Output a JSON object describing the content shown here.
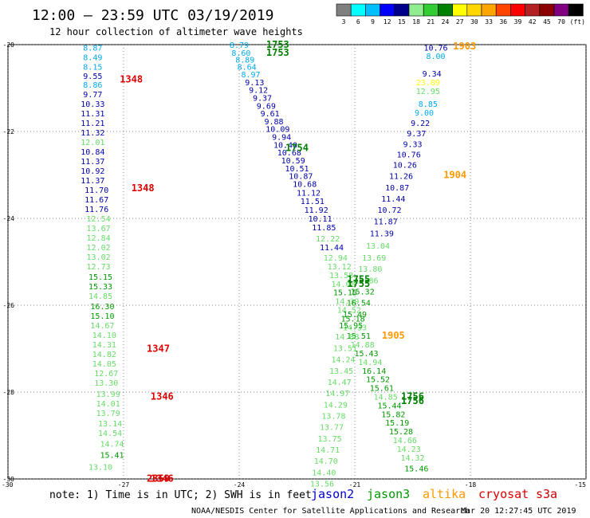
{
  "header": {
    "title": "12:00 – 23:59 UTC 03/19/2019",
    "subtitle": "12 hour collection of altimeter wave heights"
  },
  "colorbar": {
    "labels": [
      "3",
      "6",
      "9",
      "12",
      "15",
      "18",
      "21",
      "24",
      "27",
      "30",
      "33",
      "36",
      "39",
      "42",
      "45",
      "70",
      "(ft)"
    ],
    "colors": [
      "#7f7f7f",
      "#00ffff",
      "#00bfff",
      "#0000ff",
      "#00008b",
      "#90ee90",
      "#32cd32",
      "#008000",
      "#ffff00",
      "#ffd700",
      "#ffa500",
      "#ff4500",
      "#ff0000",
      "#b22222",
      "#8b0000",
      "#800080",
      "#000000"
    ]
  },
  "footer": {
    "note": "note:  1) Time is in UTC; 2) SWH is in feet",
    "credit": "NOAA/NESDIS Center for Satellite Applications and Research",
    "timestamp": "Mar 20 12:27:45 UTC 2019"
  },
  "legend": [
    {
      "name": "jason2",
      "color": "#0000cc"
    },
    {
      "name": "jason3",
      "color": "#009900"
    },
    {
      "name": "altika",
      "color": "#ff9900"
    },
    {
      "name": "cryosat",
      "color": "#dd0000"
    },
    {
      "name": "s3a",
      "color": "#cc0000"
    }
  ],
  "chart_data": {
    "type": "scatter",
    "xlim": [
      -30,
      -15
    ],
    "ylim": [
      -30,
      -20
    ],
    "xticks": [
      "-30",
      "-27",
      "-24",
      "-21",
      "-18",
      "-15"
    ],
    "yticks": [
      "-20",
      "-22",
      "-24",
      "-26",
      "-28",
      "-30"
    ],
    "grid": true,
    "points": [
      {
        "x": -27.8,
        "y": -20.06,
        "v": "8.87",
        "c": "#00aaee"
      },
      {
        "x": -27.8,
        "y": -20.28,
        "v": "8.49",
        "c": "#00aaee"
      },
      {
        "x": -27.8,
        "y": -20.5,
        "v": "8.15",
        "c": "#00aaee"
      },
      {
        "x": -27.8,
        "y": -20.72,
        "v": "9.55",
        "c": "#0000aa"
      },
      {
        "x": -27.8,
        "y": -20.92,
        "v": "8.86",
        "c": "#00aaee"
      },
      {
        "x": -27.8,
        "y": -21.14,
        "v": "9.77",
        "c": "#0000aa"
      },
      {
        "x": -27.8,
        "y": -21.36,
        "v": "10.33",
        "c": "#0000aa"
      },
      {
        "x": -27.8,
        "y": -21.58,
        "v": "11.31",
        "c": "#0000aa"
      },
      {
        "x": -27.8,
        "y": -21.8,
        "v": "11.21",
        "c": "#0000aa"
      },
      {
        "x": -27.8,
        "y": -22.02,
        "v": "11.32",
        "c": "#0000aa"
      },
      {
        "x": -27.8,
        "y": -22.24,
        "v": "12.01",
        "c": "#66dd66"
      },
      {
        "x": -27.8,
        "y": -22.46,
        "v": "10.84",
        "c": "#0000aa"
      },
      {
        "x": -27.8,
        "y": -22.68,
        "v": "11.37",
        "c": "#0000aa"
      },
      {
        "x": -27.8,
        "y": -22.9,
        "v": "10.92",
        "c": "#0000aa"
      },
      {
        "x": -27.8,
        "y": -23.12,
        "v": "11.37",
        "c": "#0000aa"
      },
      {
        "x": -27.7,
        "y": -23.34,
        "v": "11.70",
        "c": "#0000aa"
      },
      {
        "x": -27.7,
        "y": -23.56,
        "v": "11.67",
        "c": "#0000aa"
      },
      {
        "x": -27.7,
        "y": -23.78,
        "v": "11.76",
        "c": "#0000aa"
      },
      {
        "x": -27.65,
        "y": -24.0,
        "v": "12.54",
        "c": "#66dd66"
      },
      {
        "x": -27.65,
        "y": -24.22,
        "v": "13.67",
        "c": "#66dd66"
      },
      {
        "x": -27.65,
        "y": -24.44,
        "v": "12.84",
        "c": "#66dd66"
      },
      {
        "x": -27.65,
        "y": -24.66,
        "v": "12.02",
        "c": "#66dd66"
      },
      {
        "x": -27.65,
        "y": -24.88,
        "v": "13.02",
        "c": "#66dd66"
      },
      {
        "x": -27.65,
        "y": -25.1,
        "v": "12.73",
        "c": "#66dd66"
      },
      {
        "x": -27.6,
        "y": -25.34,
        "v": "15.15",
        "c": "#009900"
      },
      {
        "x": -27.6,
        "y": -25.56,
        "v": "15.33",
        "c": "#009900"
      },
      {
        "x": -27.6,
        "y": -25.78,
        "v": "14.85",
        "c": "#66dd66"
      },
      {
        "x": -27.55,
        "y": -26.02,
        "v": "16.30",
        "c": "#009900"
      },
      {
        "x": -27.55,
        "y": -26.24,
        "v": "15.10",
        "c": "#009900"
      },
      {
        "x": -27.55,
        "y": -26.46,
        "v": "14.67",
        "c": "#66dd66"
      },
      {
        "x": -27.5,
        "y": -26.68,
        "v": "14.10",
        "c": "#66dd66"
      },
      {
        "x": -27.5,
        "y": -26.9,
        "v": "14.31",
        "c": "#66dd66"
      },
      {
        "x": -27.5,
        "y": -27.12,
        "v": "14.82",
        "c": "#66dd66"
      },
      {
        "x": -27.5,
        "y": -27.34,
        "v": "14.05",
        "c": "#66dd66"
      },
      {
        "x": -27.45,
        "y": -27.56,
        "v": "12.67",
        "c": "#66dd66"
      },
      {
        "x": -27.45,
        "y": -27.78,
        "v": "13.30",
        "c": "#66dd66"
      },
      {
        "x": -27.4,
        "y": -28.04,
        "v": "13.99",
        "c": "#66dd66"
      },
      {
        "x": -27.4,
        "y": -28.26,
        "v": "14.01",
        "c": "#66dd66"
      },
      {
        "x": -27.4,
        "y": -28.48,
        "v": "13.79",
        "c": "#66dd66"
      },
      {
        "x": -27.35,
        "y": -28.72,
        "v": "13.14",
        "c": "#66dd66"
      },
      {
        "x": -27.35,
        "y": -28.94,
        "v": "14.54",
        "c": "#66dd66"
      },
      {
        "x": -27.3,
        "y": -29.18,
        "v": "14.74",
        "c": "#66dd66"
      },
      {
        "x": -27.3,
        "y": -29.44,
        "v": "15.41",
        "c": "#009900"
      },
      {
        "x": -27.6,
        "y": -29.72,
        "v": "13.10",
        "c": "#66dd66"
      },
      {
        "x": -24.0,
        "y": -20.0,
        "v": "8.79",
        "c": "#00aaee"
      },
      {
        "x": -23.95,
        "y": -20.18,
        "v": "8.60",
        "c": "#00aaee"
      },
      {
        "x": -23.85,
        "y": -20.34,
        "v": "8.89",
        "c": "#00aaee"
      },
      {
        "x": -23.8,
        "y": -20.5,
        "v": "8.64",
        "c": "#00aaee"
      },
      {
        "x": -23.7,
        "y": -20.68,
        "v": "8.97",
        "c": "#00aaee"
      },
      {
        "x": -23.6,
        "y": -20.86,
        "v": "9.13",
        "c": "#0000aa"
      },
      {
        "x": -23.5,
        "y": -21.04,
        "v": "9.12",
        "c": "#0000aa"
      },
      {
        "x": -23.4,
        "y": -21.22,
        "v": "9.37",
        "c": "#0000aa"
      },
      {
        "x": -23.3,
        "y": -21.4,
        "v": "9.69",
        "c": "#0000aa"
      },
      {
        "x": -23.2,
        "y": -21.58,
        "v": "9.61",
        "c": "#0000aa"
      },
      {
        "x": -23.1,
        "y": -21.76,
        "v": "9.88",
        "c": "#0000aa"
      },
      {
        "x": -23.0,
        "y": -21.94,
        "v": "10.09",
        "c": "#0000aa"
      },
      {
        "x": -22.9,
        "y": -22.12,
        "v": "9.94",
        "c": "#0000aa"
      },
      {
        "x": -22.8,
        "y": -22.3,
        "v": "10.40",
        "c": "#0000aa"
      },
      {
        "x": -22.7,
        "y": -22.48,
        "v": "10.68",
        "c": "#0000aa"
      },
      {
        "x": -22.6,
        "y": -22.66,
        "v": "10.59",
        "c": "#0000aa"
      },
      {
        "x": -22.5,
        "y": -22.84,
        "v": "10.51",
        "c": "#0000aa"
      },
      {
        "x": -22.4,
        "y": -23.02,
        "v": "10.87",
        "c": "#0000aa"
      },
      {
        "x": -22.3,
        "y": -23.2,
        "v": "10.68",
        "c": "#0000aa"
      },
      {
        "x": -22.2,
        "y": -23.4,
        "v": "11.12",
        "c": "#0000aa"
      },
      {
        "x": -22.1,
        "y": -23.6,
        "v": "11.51",
        "c": "#0000aa"
      },
      {
        "x": -22.0,
        "y": -23.8,
        "v": "11.92",
        "c": "#0000aa"
      },
      {
        "x": -21.9,
        "y": -24.0,
        "v": "10.11",
        "c": "#0000aa"
      },
      {
        "x": -21.8,
        "y": -24.2,
        "v": "11.85",
        "c": "#0000aa"
      },
      {
        "x": -21.7,
        "y": -24.46,
        "v": "12.22",
        "c": "#66dd66"
      },
      {
        "x": -21.6,
        "y": -24.66,
        "v": "11.44",
        "c": "#0000aa"
      },
      {
        "x": -21.5,
        "y": -24.9,
        "v": "12.94",
        "c": "#66dd66"
      },
      {
        "x": -21.4,
        "y": -25.1,
        "v": "13.12",
        "c": "#66dd66"
      },
      {
        "x": -21.35,
        "y": -25.3,
        "v": "13.58",
        "c": "#66dd66"
      },
      {
        "x": -21.3,
        "y": -25.5,
        "v": "14.08",
        "c": "#66dd66"
      },
      {
        "x": -21.25,
        "y": -25.7,
        "v": "15.15",
        "c": "#009900"
      },
      {
        "x": -21.2,
        "y": -25.9,
        "v": "14.39",
        "c": "#66dd66"
      },
      {
        "x": -21.15,
        "y": -26.1,
        "v": "14.52",
        "c": "#66dd66"
      },
      {
        "x": -21.05,
        "y": -26.3,
        "v": "15.18",
        "c": "#009900"
      },
      {
        "x": -21.0,
        "y": -26.5,
        "v": "14.33",
        "c": "#66dd66"
      },
      {
        "x": -20.9,
        "y": -26.7,
        "v": "15.51",
        "c": "#009900"
      },
      {
        "x": -20.8,
        "y": -26.9,
        "v": "14.88",
        "c": "#66dd66"
      },
      {
        "x": -20.7,
        "y": -27.1,
        "v": "15.43",
        "c": "#009900"
      },
      {
        "x": -20.6,
        "y": -27.3,
        "v": "14.94",
        "c": "#66dd66"
      },
      {
        "x": -20.5,
        "y": -27.5,
        "v": "16.14",
        "c": "#009900"
      },
      {
        "x": -20.4,
        "y": -27.7,
        "v": "15.52",
        "c": "#009900"
      },
      {
        "x": -20.3,
        "y": -27.9,
        "v": "15.61",
        "c": "#009900"
      },
      {
        "x": -20.2,
        "y": -28.1,
        "v": "14.85",
        "c": "#66dd66"
      },
      {
        "x": -20.1,
        "y": -28.3,
        "v": "15.44",
        "c": "#009900"
      },
      {
        "x": -20.0,
        "y": -28.5,
        "v": "15.82",
        "c": "#009900"
      },
      {
        "x": -19.9,
        "y": -28.7,
        "v": "15.19",
        "c": "#009900"
      },
      {
        "x": -19.8,
        "y": -28.9,
        "v": "15.28",
        "c": "#009900"
      },
      {
        "x": -19.7,
        "y": -29.1,
        "v": "14.66",
        "c": "#66dd66"
      },
      {
        "x": -19.6,
        "y": -29.3,
        "v": "14.23",
        "c": "#66dd66"
      },
      {
        "x": -19.5,
        "y": -29.5,
        "v": "14.32",
        "c": "#66dd66"
      },
      {
        "x": -19.4,
        "y": -29.75,
        "v": "15.46",
        "c": "#009900"
      },
      {
        "x": -18.9,
        "y": -20.06,
        "v": "10.76",
        "c": "#0000aa"
      },
      {
        "x": -18.9,
        "y": -20.26,
        "v": "8.00",
        "c": "#00aaee"
      },
      {
        "x": -19.0,
        "y": -20.66,
        "v": "9.34",
        "c": "#0000aa"
      },
      {
        "x": -19.1,
        "y": -20.86,
        "v": "23.89",
        "c": "#ffff00"
      },
      {
        "x": -19.1,
        "y": -21.06,
        "v": "12.95",
        "c": "#66dd66"
      },
      {
        "x": -19.1,
        "y": -21.36,
        "v": "8.85",
        "c": "#00aaee"
      },
      {
        "x": -19.2,
        "y": -21.56,
        "v": "9.00",
        "c": "#00aaee"
      },
      {
        "x": -19.3,
        "y": -21.8,
        "v": "9.22",
        "c": "#0000aa"
      },
      {
        "x": -19.4,
        "y": -22.04,
        "v": "9.37",
        "c": "#0000aa"
      },
      {
        "x": -19.5,
        "y": -22.28,
        "v": "9.33",
        "c": "#0000aa"
      },
      {
        "x": -19.6,
        "y": -22.52,
        "v": "10.76",
        "c": "#0000aa"
      },
      {
        "x": -19.7,
        "y": -22.76,
        "v": "10.26",
        "c": "#0000aa"
      },
      {
        "x": -19.8,
        "y": -23.02,
        "v": "11.26",
        "c": "#0000aa"
      },
      {
        "x": -19.9,
        "y": -23.28,
        "v": "10.87",
        "c": "#0000aa"
      },
      {
        "x": -20.0,
        "y": -23.54,
        "v": "11.44",
        "c": "#0000aa"
      },
      {
        "x": -20.1,
        "y": -23.8,
        "v": "10.72",
        "c": "#0000aa"
      },
      {
        "x": -20.2,
        "y": -24.06,
        "v": "11.87",
        "c": "#0000aa"
      },
      {
        "x": -20.3,
        "y": -24.34,
        "v": "11.39",
        "c": "#0000aa"
      },
      {
        "x": -20.4,
        "y": -24.62,
        "v": "13.04",
        "c": "#66dd66"
      },
      {
        "x": -20.5,
        "y": -24.9,
        "v": "13.69",
        "c": "#66dd66"
      },
      {
        "x": -20.6,
        "y": -25.16,
        "v": "13.80",
        "c": "#66dd66"
      },
      {
        "x": -20.7,
        "y": -25.42,
        "v": "14.86",
        "c": "#66dd66"
      },
      {
        "x": -20.8,
        "y": -25.68,
        "v": "15.32",
        "c": "#009900"
      },
      {
        "x": -20.9,
        "y": -25.94,
        "v": "16.54",
        "c": "#009900"
      },
      {
        "x": -21.0,
        "y": -26.2,
        "v": "15.49",
        "c": "#009900"
      },
      {
        "x": -21.1,
        "y": -26.46,
        "v": "15.95",
        "c": "#009900"
      },
      {
        "x": -21.2,
        "y": -26.72,
        "v": "14.88",
        "c": "#66dd66"
      },
      {
        "x": -21.25,
        "y": -26.98,
        "v": "13.51",
        "c": "#66dd66"
      },
      {
        "x": -21.3,
        "y": -27.24,
        "v": "14.24",
        "c": "#66dd66"
      },
      {
        "x": -21.35,
        "y": -27.5,
        "v": "13.45",
        "c": "#66dd66"
      },
      {
        "x": -21.4,
        "y": -27.76,
        "v": "14.47",
        "c": "#66dd66"
      },
      {
        "x": -21.45,
        "y": -28.02,
        "v": "14.97",
        "c": "#66dd66"
      },
      {
        "x": -21.5,
        "y": -28.28,
        "v": "14.29",
        "c": "#66dd66"
      },
      {
        "x": -21.55,
        "y": -28.54,
        "v": "13.78",
        "c": "#66dd66"
      },
      {
        "x": -21.6,
        "y": -28.8,
        "v": "13.77",
        "c": "#66dd66"
      },
      {
        "x": -21.65,
        "y": -29.06,
        "v": "13.75",
        "c": "#66dd66"
      },
      {
        "x": -21.7,
        "y": -29.32,
        "v": "14.71",
        "c": "#66dd66"
      },
      {
        "x": -21.75,
        "y": -29.58,
        "v": "14.70",
        "c": "#66dd66"
      },
      {
        "x": -21.8,
        "y": -29.84,
        "v": "14.40",
        "c": "#66dd66"
      },
      {
        "x": -21.85,
        "y": -30.1,
        "v": "13.56",
        "c": "#66dd66"
      }
    ],
    "pass_labels": [
      {
        "x": -23.0,
        "y": -20.0,
        "v": "1753",
        "c": "#008000"
      },
      {
        "x": -23.0,
        "y": -20.18,
        "v": "1753",
        "c": "#008000"
      },
      {
        "x": -22.5,
        "y": -22.38,
        "v": "1754",
        "c": "#008000"
      },
      {
        "x": -20.9,
        "y": -25.4,
        "v": "1755",
        "c": "#008000"
      },
      {
        "x": -20.9,
        "y": -25.5,
        "v": "1755",
        "c": "#008000"
      },
      {
        "x": -19.5,
        "y": -28.1,
        "v": "1756",
        "c": "#008000"
      },
      {
        "x": -19.5,
        "y": -28.2,
        "v": "1756",
        "c": "#008000"
      },
      {
        "x": -26.8,
        "y": -20.8,
        "v": "1348",
        "c": "#dd0000"
      },
      {
        "x": -26.5,
        "y": -23.3,
        "v": "1348",
        "c": "#dd0000"
      },
      {
        "x": -26.1,
        "y": -27.0,
        "v": "1347",
        "c": "#dd0000"
      },
      {
        "x": -26.0,
        "y": -28.1,
        "v": "1346",
        "c": "#dd0000"
      },
      {
        "x": -26.0,
        "y": -29.99,
        "v": "1346",
        "c": "#dd0000"
      },
      {
        "x": -26.1,
        "y": -29.99,
        "v": "2359",
        "c": "#dd0000"
      },
      {
        "x": -18.15,
        "y": -20.04,
        "v": "1903",
        "c": "#ff9900"
      },
      {
        "x": -18.4,
        "y": -23.0,
        "v": "1904",
        "c": "#ff9900"
      },
      {
        "x": -20.0,
        "y": -26.7,
        "v": "1905",
        "c": "#ff9900"
      }
    ]
  }
}
